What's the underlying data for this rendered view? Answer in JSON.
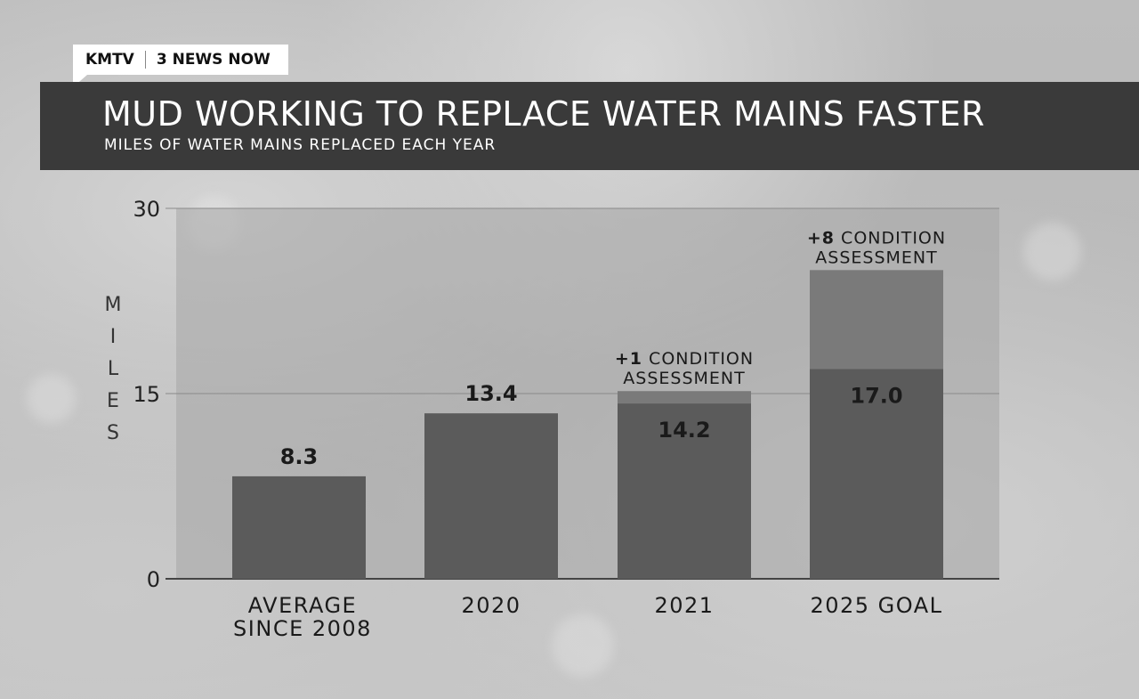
{
  "brand": {
    "station": "KMTV",
    "program": "3 NEWS NOW"
  },
  "chart_data": {
    "type": "bar",
    "title": "MUD WORKING TO REPLACE WATER MAINS FASTER",
    "subtitle": "MILES OF WATER MAINS REPLACED EACH YEAR",
    "xlabel": "",
    "ylabel": "MILES",
    "ylim": [
      0,
      30
    ],
    "yticks": [
      "0",
      "15",
      "30"
    ],
    "ytick_values": [
      0,
      15,
      30
    ],
    "grid": true,
    "categories": [
      "AVERAGE\nSINCE 2008",
      "2020",
      "2021",
      "2025 GOAL"
    ],
    "series": [
      {
        "values": [
          8.3,
          13.4,
          14.2,
          17.0
        ],
        "color": "#5b5b5b"
      },
      {
        "values": [
          0,
          0,
          1,
          8
        ],
        "color": "#7a7a7a"
      }
    ],
    "data_labels": [
      "8.3",
      "13.4",
      "14.2",
      "17.0"
    ],
    "annotations": [
      {
        "category_index": 2,
        "bold": "+1",
        "text_line1": " CONDITION",
        "text_line2": "ASSESSMENT"
      },
      {
        "category_index": 3,
        "bold": "+8",
        "text_line1": " CONDITION",
        "text_line2": "ASSESSMENT"
      }
    ],
    "colors": {
      "plot_background": "#a5a5a5",
      "bar": "#5b5b5b",
      "bar_extra": "#7a7a7a",
      "axis": "#444444",
      "text": "#1a1a1a"
    }
  }
}
